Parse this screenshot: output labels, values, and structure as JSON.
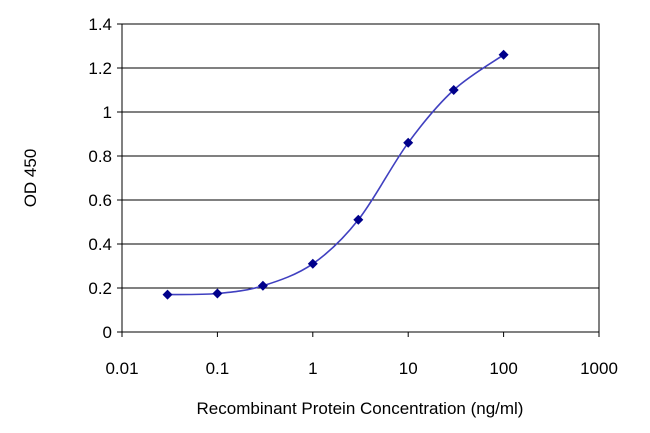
{
  "chart_data": {
    "type": "line",
    "xlabel": "Recombinant Protein Concentration (ng/ml)",
    "ylabel": "OD 450",
    "xscale": "log",
    "xlim": [
      0.01,
      1000
    ],
    "ylim": [
      0,
      1.4
    ],
    "x_ticks": [
      "0.01",
      "0.1",
      "1",
      "10",
      "100",
      "1000"
    ],
    "x_tick_values": [
      0.01,
      0.1,
      1,
      10,
      100,
      1000
    ],
    "y_ticks": [
      "0",
      "0.2",
      "0.4",
      "0.6",
      "0.8",
      "1",
      "1.2",
      "1.4"
    ],
    "y_tick_values": [
      0,
      0.2,
      0.4,
      0.6,
      0.8,
      1,
      1.2,
      1.4
    ],
    "grid": "horizontal",
    "legend": "none",
    "series": [
      {
        "x": [
          0.03,
          0.1,
          0.3,
          1,
          3,
          10,
          30,
          100
        ],
        "y": [
          0.17,
          0.175,
          0.21,
          0.31,
          0.51,
          0.86,
          1.1,
          1.26
        ],
        "color": "#00008b",
        "marker": "diamond"
      }
    ]
  }
}
